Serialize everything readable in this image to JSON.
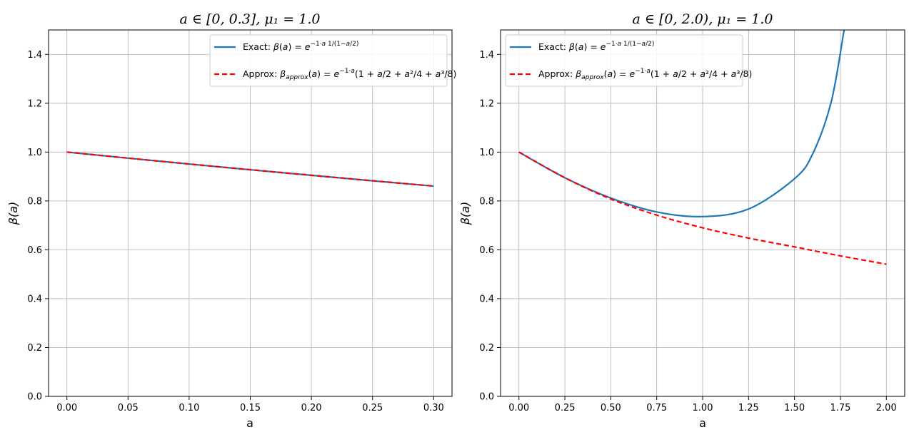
{
  "chart_data": [
    {
      "type": "line",
      "title": "a ∈ [0, 0.3],  μ₁ = 1.0",
      "xlabel": "a",
      "ylabel": "β(a)",
      "xlim": [
        -0.015,
        0.315
      ],
      "ylim": [
        0.0,
        1.5
      ],
      "xticks": [
        0.0,
        0.05,
        0.1,
        0.15,
        0.2,
        0.25,
        0.3
      ],
      "xtick_labels": [
        "0.00",
        "0.05",
        "0.10",
        "0.15",
        "0.20",
        "0.25",
        "0.30"
      ],
      "yticks": [
        0.0,
        0.2,
        0.4,
        0.6,
        0.8,
        1.0,
        1.2,
        1.4
      ],
      "ytick_labels": [
        "0.0",
        "0.2",
        "0.4",
        "0.6",
        "0.8",
        "1.0",
        "1.2",
        "1.4"
      ],
      "grid": true,
      "legend_position": "upper right",
      "series": [
        {
          "name": "Exact: β(a) = e^(−1·a·1/(1−a/2))",
          "color": "#1f77b4",
          "style": "solid",
          "x": [
            0.0,
            0.05,
            0.1,
            0.15,
            0.2,
            0.25,
            0.3
          ],
          "y": [
            1.0,
            0.9752,
            0.9512,
            0.9278,
            0.905,
            0.8825,
            0.8607
          ]
        },
        {
          "name": "Approx: β_approx(a) = e^(−1·a(1 + a/2 + a²/4 + a³/8))",
          "color": "#ff0000",
          "style": "dashed",
          "x": [
            0.0,
            0.05,
            0.1,
            0.15,
            0.2,
            0.25,
            0.3
          ],
          "y": [
            1.0,
            0.9752,
            0.9512,
            0.9278,
            0.905,
            0.8826,
            0.8608
          ]
        }
      ]
    },
    {
      "type": "line",
      "title": "a ∈ [0, 2.0),  μ₁ = 1.0",
      "xlabel": "a",
      "ylabel": "β(a)",
      "xlim": [
        -0.1,
        2.1
      ],
      "ylim": [
        0.0,
        1.5
      ],
      "xticks": [
        0.0,
        0.25,
        0.5,
        0.75,
        1.0,
        1.25,
        1.5,
        1.75,
        2.0
      ],
      "xtick_labels": [
        "0.00",
        "0.25",
        "0.50",
        "0.75",
        "1.00",
        "1.25",
        "1.50",
        "1.75",
        "2.00"
      ],
      "yticks": [
        0.0,
        0.2,
        0.4,
        0.6,
        0.8,
        1.0,
        1.2,
        1.4
      ],
      "ytick_labels": [
        "0.0",
        "0.2",
        "0.4",
        "0.6",
        "0.8",
        "1.0",
        "1.2",
        "1.4"
      ],
      "grid": true,
      "legend_position": "upper left",
      "series": [
        {
          "name": "Exact: β(a) = e^(−1·a·1/(1−a/2))",
          "color": "#1f77b4",
          "style": "solid",
          "x": [
            0.0,
            0.25,
            0.5,
            0.75,
            1.0,
            1.25,
            1.5,
            1.6,
            1.7,
            1.77
          ],
          "y": [
            1.0,
            0.895,
            0.812,
            0.755,
            0.736,
            0.767,
            0.891,
            0.994,
            1.206,
            1.5
          ]
        },
        {
          "name": "Approx: β_approx(a) = e^(−1·a(1 + a/2 + a²/4 + a³/8))",
          "color": "#ff0000",
          "style": "dashed",
          "x": [
            0.0,
            0.25,
            0.5,
            0.75,
            1.0,
            1.25,
            1.5,
            1.75,
            2.0
          ],
          "y": [
            1.0,
            0.895,
            0.808,
            0.742,
            0.69,
            0.648,
            0.612,
            0.575,
            0.541
          ]
        }
      ]
    }
  ]
}
